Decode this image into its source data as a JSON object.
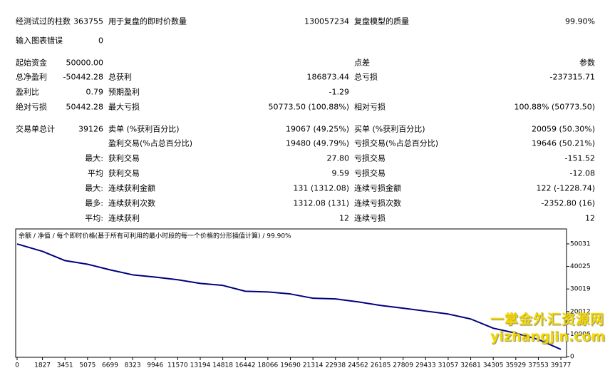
{
  "table": {
    "rows": [
      [
        "经测试过的柱数",
        "363755",
        "用于复盘的即时价数量",
        "130057234",
        "复盘模型的质量",
        "99.90%"
      ],
      [
        "输入图表错误",
        "0",
        null,
        null,
        null,
        null
      ],
      [
        "起始资金",
        "50000.00",
        null,
        null,
        "点差",
        "参数"
      ],
      [
        "总净盈利",
        "-50442.28",
        "总获利",
        "186873.44",
        "总亏损",
        "-237315.71"
      ],
      [
        "盈利比",
        "0.79",
        "预期盈利",
        "-1.29",
        null,
        null
      ],
      [
        "绝对亏损",
        "50442.28",
        "最大亏损",
        "50773.50 (100.88%)",
        "相对亏损",
        "100.88% (50773.50)"
      ],
      [
        "交易单总计",
        "39126",
        "卖单 (%获利百分比)",
        "19067 (49.25%)",
        "买单 (%获利百分比)",
        "20059 (50.30%)"
      ],
      [
        null,
        null,
        "盈利交易(%占总百分比)",
        "19480 (49.79%)",
        "亏损交易(%占总百分比)",
        "19646 (50.21%)"
      ],
      [
        null,
        "最大:",
        "获利交易",
        "27.80",
        "亏损交易",
        "-151.52"
      ],
      [
        null,
        "平均",
        "获利交易",
        "9.59",
        "亏损交易",
        "-12.08"
      ],
      [
        null,
        "最大:",
        "连续获利金额",
        "131 (1312.08)",
        "连续亏损金额",
        "122 (-1228.74)"
      ],
      [
        null,
        "最多:",
        "连续获利次数",
        "1312.08 (131)",
        "连续亏损次数",
        "-2352.80 (16)"
      ],
      [
        null,
        "平均:",
        "连续获利",
        "12",
        "连续亏损",
        "12"
      ]
    ]
  },
  "chart_data": {
    "type": "line",
    "legend": "余额 / 净值 / 每个即时价格(基于所有可利用的最小时段的每一个价格的分形插值计算) / 99.90%",
    "x": [
      0,
      1827,
      3451,
      5075,
      6699,
      8323,
      9946,
      11570,
      13194,
      14818,
      16442,
      18066,
      19690,
      21314,
      22938,
      24562,
      26185,
      27809,
      29433,
      31057,
      32681,
      34305,
      35929,
      37553,
      39177
    ],
    "series": [
      {
        "color": "#000080",
        "values": [
          50000,
          46700,
          42600,
          41000,
          38500,
          36300,
          35300,
          34100,
          32500,
          31600,
          29000,
          28700,
          27800,
          25900,
          25600,
          24300,
          22700,
          21500,
          20200,
          18900,
          16700,
          12600,
          10400,
          7600,
          3200
        ]
      }
    ],
    "xlim": [
      0,
      39430
    ],
    "xticks": [
      0,
      1827,
      3451,
      5075,
      6699,
      8323,
      9946,
      11570,
      13194,
      14818,
      16442,
      18066,
      19690,
      21314,
      22938,
      24562,
      26185,
      27809,
      29433,
      31057,
      32681,
      34305,
      35929,
      37553,
      39177
    ],
    "ylim": [
      0,
      56660
    ],
    "yticks": [
      0,
      10006,
      20012,
      30019,
      40025,
      50031
    ]
  },
  "watermark": [
    "一掌金外汇资源网",
    "yizhangjin.com"
  ]
}
